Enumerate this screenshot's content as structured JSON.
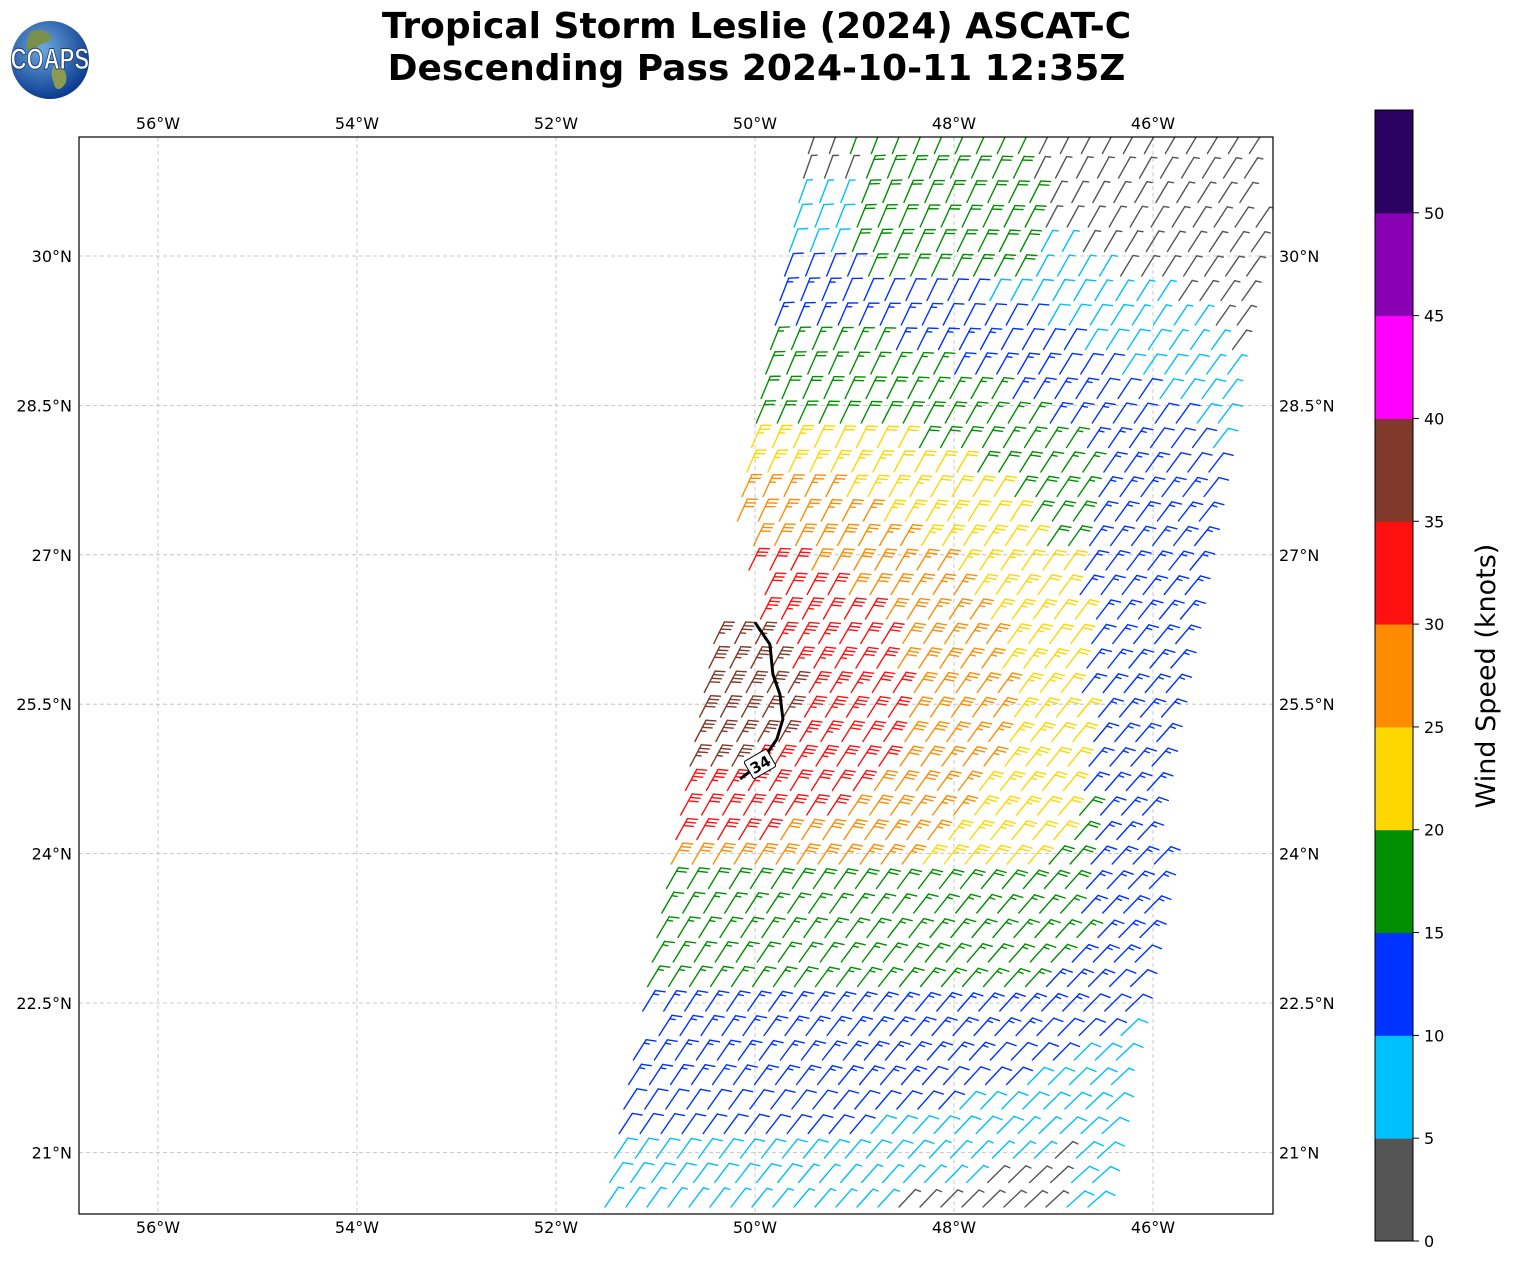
{
  "title": {
    "line1": "Tropical Storm Leslie (2024) ASCAT-C",
    "line2": "Descending Pass 2024-10-11 12:35Z"
  },
  "logo": {
    "text": "COAPS",
    "icon": "globe-icon"
  },
  "map": {
    "lon_range": [
      -56.8,
      -44.8
    ],
    "lat_range": [
      20.38,
      31.2
    ],
    "lon_ticks": [
      {
        "value": -56,
        "label": "56°W"
      },
      {
        "value": -54,
        "label": "54°W"
      },
      {
        "value": -52,
        "label": "52°W"
      },
      {
        "value": -50,
        "label": "50°W"
      },
      {
        "value": -48,
        "label": "48°W"
      },
      {
        "value": -46,
        "label": "46°W"
      }
    ],
    "lat_ticks": [
      {
        "value": 30,
        "label": "30°N"
      },
      {
        "value": 28.5,
        "label": "28.5°N"
      },
      {
        "value": 27,
        "label": "27°N"
      },
      {
        "value": 25.5,
        "label": "25.5°N"
      },
      {
        "value": 24,
        "label": "24°N"
      },
      {
        "value": 22.5,
        "label": "22.5°N"
      },
      {
        "value": 21,
        "label": "21°N"
      }
    ],
    "gridlines": true,
    "contour": {
      "label": "34",
      "points": [
        [
          -50.0,
          26.32
        ],
        [
          -49.85,
          26.1
        ],
        [
          -49.82,
          25.8
        ],
        [
          -49.75,
          25.6
        ],
        [
          -49.72,
          25.35
        ],
        [
          -49.78,
          25.15
        ],
        [
          -49.95,
          24.9
        ],
        [
          -50.15,
          24.75
        ]
      ]
    }
  },
  "colorbar": {
    "title": "Wind Speed (knots)",
    "ticks": [
      "0",
      "5",
      "10",
      "15",
      "20",
      "25",
      "30",
      "35",
      "40",
      "45",
      "50"
    ],
    "colors": [
      "#555555",
      "#00bfff",
      "#0033ff",
      "#008f00",
      "#ffd700",
      "#ff8c00",
      "#ff1010",
      "#80392a",
      "#ff00ff",
      "#8a00b3",
      "#2a0060"
    ],
    "max": 55
  }
}
